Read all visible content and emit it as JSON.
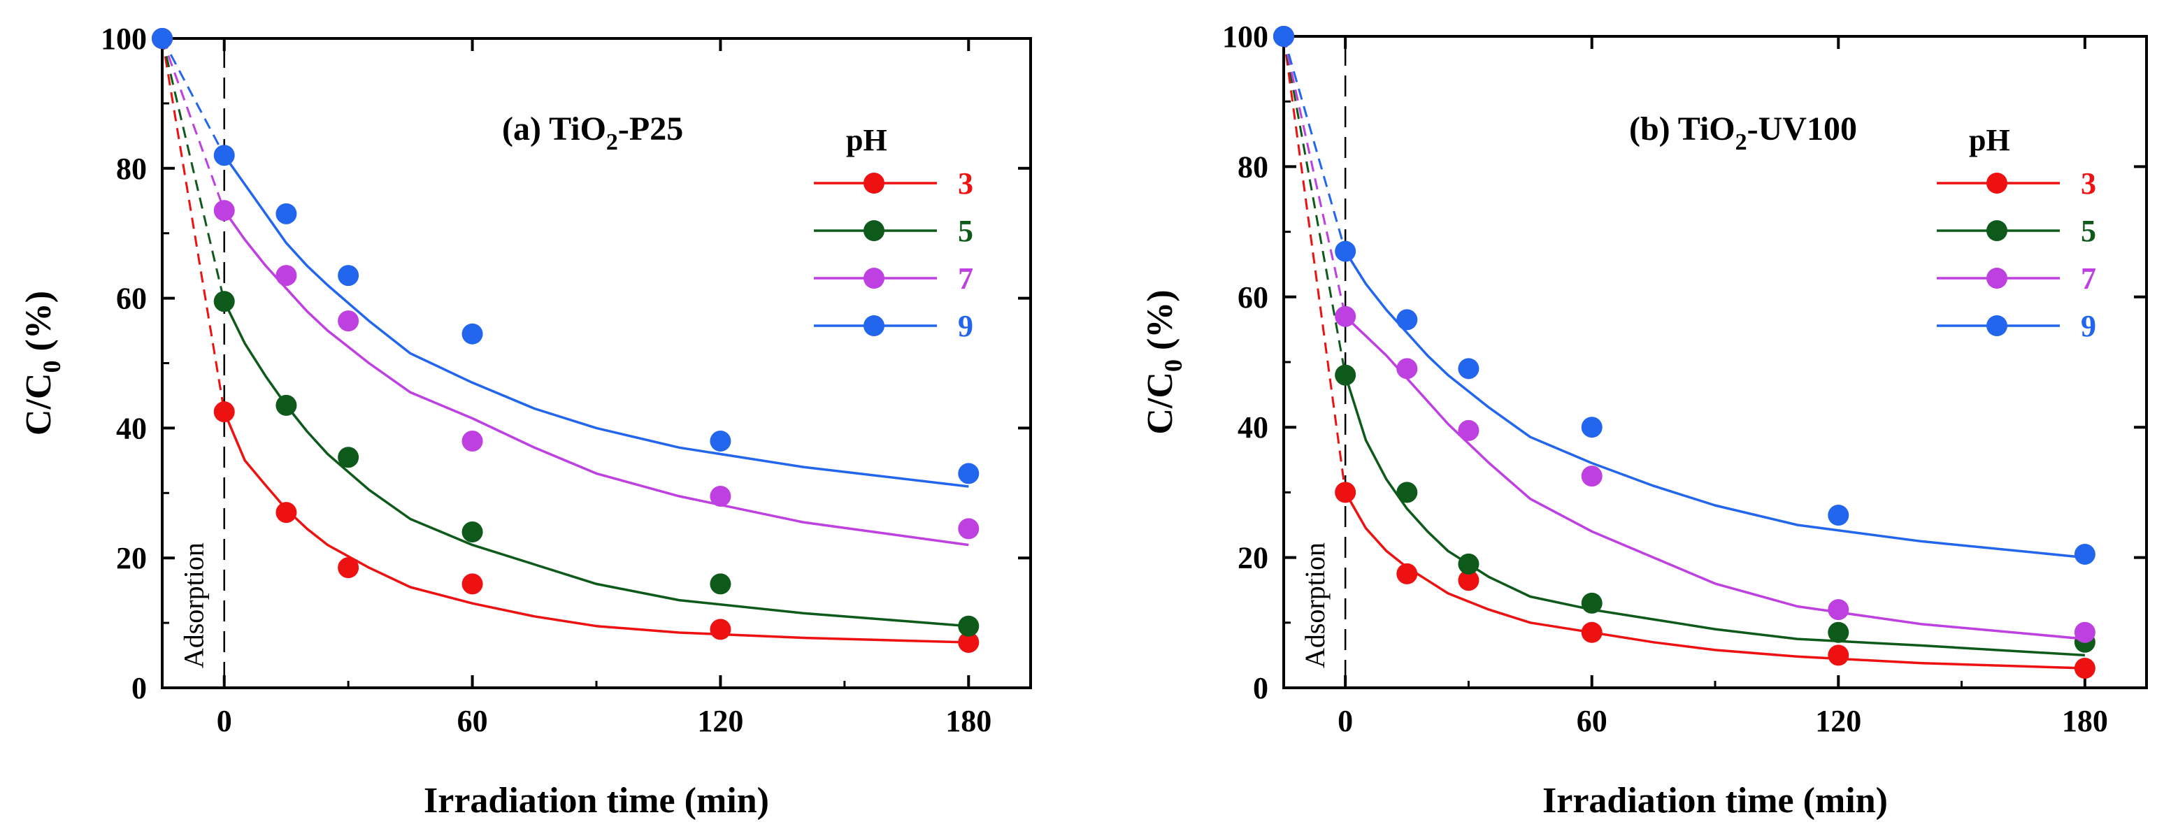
{
  "chart_data": [
    {
      "type": "scatter",
      "panel": "a",
      "title_main": "(a) TiO",
      "title_sub": "2",
      "title_tail": "-P25",
      "xlabel": "Irradiation time (min)",
      "ylabel_main": "C/C",
      "ylabel_sub": "0",
      "ylabel_tail": " (%)",
      "xlim": [
        -15,
        195
      ],
      "ylim": [
        0,
        100
      ],
      "xticks": [
        0,
        60,
        120,
        180
      ],
      "yticks": [
        0,
        20,
        40,
        60,
        80,
        100
      ],
      "annotation": "Adsorption",
      "legend_title": "pH",
      "series": [
        {
          "name": "3",
          "color": "#ee1111",
          "x": [
            -15,
            0,
            15,
            30,
            60,
            120,
            180
          ],
          "values": [
            100,
            42.5,
            27,
            18.5,
            16,
            9,
            7
          ],
          "fit": [
            42.5,
            35,
            31.2,
            27.5,
            24.5,
            22,
            18.5,
            15.5,
            13,
            11,
            9.5,
            8.5,
            7.7,
            7
          ]
        },
        {
          "name": "5",
          "color": "#0e5a1a",
          "x": [
            -15,
            0,
            15,
            30,
            60,
            120,
            180
          ],
          "values": [
            100,
            59.5,
            43.5,
            35.5,
            24,
            16,
            9.5
          ],
          "fit": [
            59.5,
            53,
            48,
            43.5,
            39.5,
            36,
            30.5,
            26,
            22,
            19,
            16,
            13.5,
            11.5,
            9.5
          ]
        },
        {
          "name": "7",
          "color": "#bf40e0",
          "x": [
            -15,
            0,
            15,
            30,
            60,
            120,
            180
          ],
          "values": [
            100,
            73.5,
            63.5,
            56.5,
            38,
            29.5,
            24.5
          ],
          "fit": [
            73.5,
            69,
            65,
            61.5,
            58,
            55,
            50,
            45.5,
            41.5,
            37,
            33,
            29.5,
            25.5,
            22
          ]
        },
        {
          "name": "9",
          "color": "#2266ee",
          "x": [
            -15,
            0,
            15,
            30,
            60,
            120,
            180
          ],
          "values": [
            100,
            82,
            73,
            63.5,
            54.5,
            38,
            33
          ],
          "fit": [
            82,
            77.5,
            73,
            68.5,
            65,
            62,
            56.5,
            51.5,
            47,
            43,
            40,
            37,
            34,
            31
          ]
        }
      ]
    },
    {
      "type": "scatter",
      "panel": "b",
      "title_main": "(b) TiO",
      "title_sub": "2",
      "title_tail": "-UV100",
      "xlabel": "Irradiation time (min)",
      "ylabel_main": "C/C",
      "ylabel_sub": "0",
      "ylabel_tail": " (%)",
      "xlim": [
        -15,
        195
      ],
      "ylim": [
        0,
        100
      ],
      "xticks": [
        0,
        60,
        120,
        180
      ],
      "yticks": [
        0,
        20,
        40,
        60,
        80,
        100
      ],
      "annotation": "Adsorption",
      "legend_title": "pH",
      "series": [
        {
          "name": "3",
          "color": "#ee1111",
          "x": [
            -15,
            0,
            15,
            30,
            60,
            120,
            180
          ],
          "values": [
            100,
            30,
            17.5,
            16.5,
            8.5,
            5,
            3
          ],
          "fit": [
            30,
            24.5,
            21,
            18.5,
            16.5,
            14.5,
            12,
            10,
            8.5,
            7,
            5.8,
            4.8,
            3.8,
            3
          ]
        },
        {
          "name": "5",
          "color": "#0e5a1a",
          "x": [
            -15,
            0,
            15,
            30,
            60,
            120,
            180
          ],
          "values": [
            100,
            48,
            30,
            19,
            13,
            8.5,
            7
          ],
          "fit": [
            48,
            38,
            32,
            27.5,
            24,
            21,
            17,
            14,
            12,
            10.5,
            9,
            7.5,
            6.5,
            5
          ]
        },
        {
          "name": "7",
          "color": "#bf40e0",
          "x": [
            -15,
            0,
            15,
            30,
            60,
            120,
            180
          ],
          "values": [
            100,
            57,
            49,
            39.5,
            32.5,
            12,
            8.5
          ],
          "fit": [
            57,
            54,
            51,
            47.5,
            44,
            40.5,
            34.5,
            29,
            24,
            20,
            16,
            12.5,
            9.8,
            7.5
          ]
        },
        {
          "name": "9",
          "color": "#2266ee",
          "x": [
            -15,
            0,
            15,
            30,
            60,
            120,
            180
          ],
          "values": [
            100,
            67,
            56.5,
            49,
            40,
            26.5,
            20.5
          ],
          "fit": [
            67,
            62,
            58,
            54.5,
            51,
            48,
            43,
            38.5,
            34.5,
            31,
            28,
            25,
            22.5,
            20
          ]
        }
      ]
    }
  ]
}
